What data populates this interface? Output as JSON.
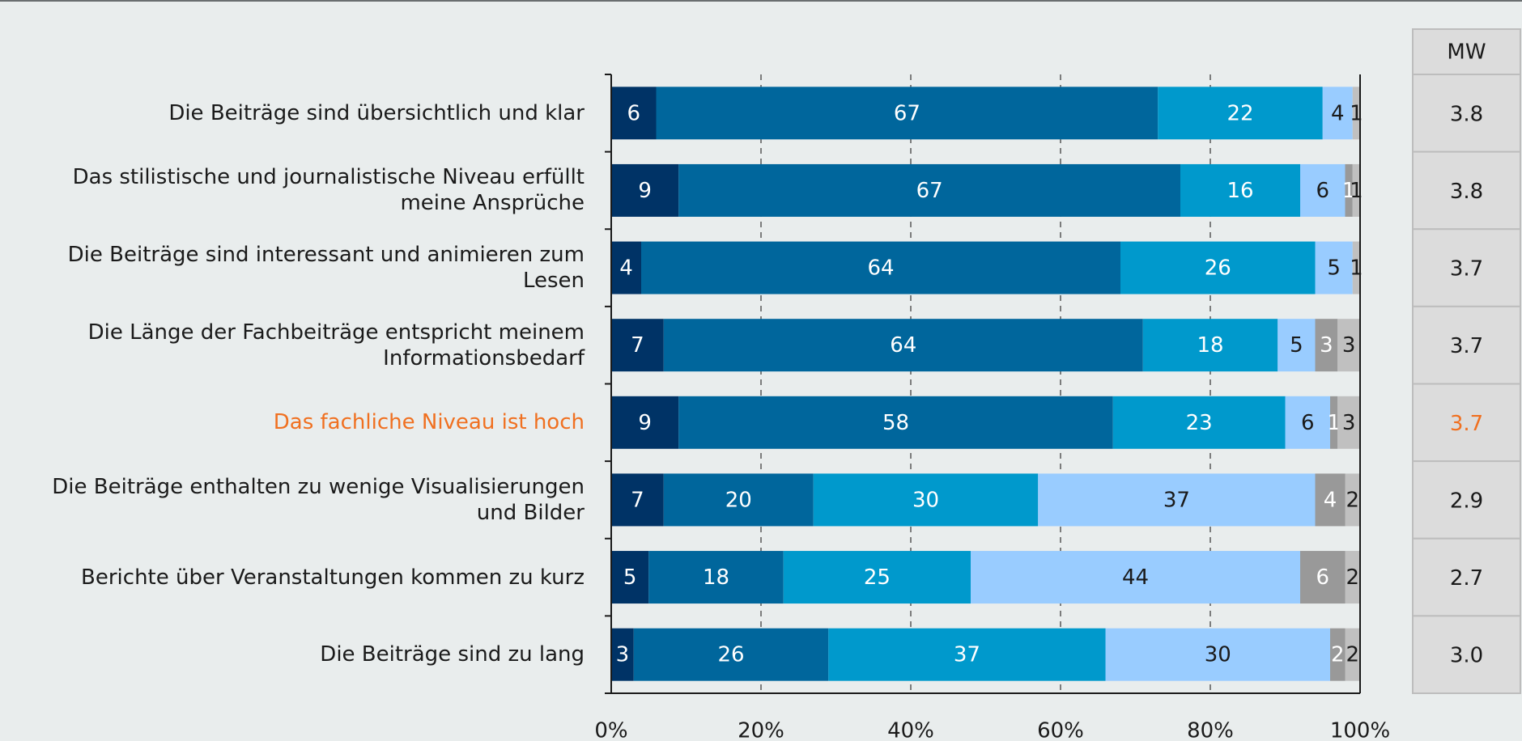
{
  "chart_data": {
    "type": "stacked_bar_horizontal",
    "categories": [
      "Die Beiträge sind übersichtlich und klar",
      "Das stilistische und journalistische Niveau erfüllt\nmeine Ansprüche",
      "Die Beiträge sind interessant und animieren zum\nLesen",
      "Die Länge der Fachbeiträge entspricht meinem\nInformationsbedarf",
      "Das fachliche Niveau ist hoch",
      "Die Beiträge enthalten zu wenige Visualisierungen\nund Bilder",
      "Berichte über Veranstaltungen kommen zu kurz",
      "Die Beiträge sind zu lang"
    ],
    "series": [
      {
        "color": "#003366",
        "values": [
          6,
          9,
          4,
          7,
          9,
          7,
          5,
          3
        ]
      },
      {
        "color": "#00669c",
        "values": [
          67,
          67,
          64,
          64,
          58,
          20,
          18,
          26
        ]
      },
      {
        "color": "#0099cc",
        "values": [
          22,
          16,
          26,
          18,
          23,
          30,
          25,
          37
        ]
      },
      {
        "color": "#99ccff",
        "values": [
          4,
          6,
          5,
          5,
          6,
          37,
          44,
          30
        ]
      },
      {
        "color": "#999999",
        "values": [
          0,
          1,
          0,
          3,
          1,
          4,
          6,
          2
        ]
      },
      {
        "color": "#c0c0c0",
        "values": [
          1,
          1,
          1,
          3,
          3,
          2,
          2,
          2
        ]
      }
    ],
    "xlim": [
      0,
      100
    ],
    "xticks": [
      {
        "value": 0,
        "label": "0%"
      },
      {
        "value": 20,
        "label": "20%"
      },
      {
        "value": 40,
        "label": "40%"
      },
      {
        "value": 60,
        "label": "60%"
      },
      {
        "value": 80,
        "label": "80%"
      },
      {
        "value": 100,
        "label": "100%"
      }
    ],
    "grid": true,
    "highlight": 4,
    "highlight_color": "#f07020",
    "mean_column": {
      "header": "MW",
      "values": [
        3.8,
        3.8,
        3.7,
        3.7,
        3.7,
        2.9,
        2.7,
        3.0
      ],
      "value_labels": [
        "3.8",
        "3.8",
        "3.7",
        "3.7",
        "3.7",
        "2.9",
        "2.7",
        "3.0"
      ]
    }
  }
}
